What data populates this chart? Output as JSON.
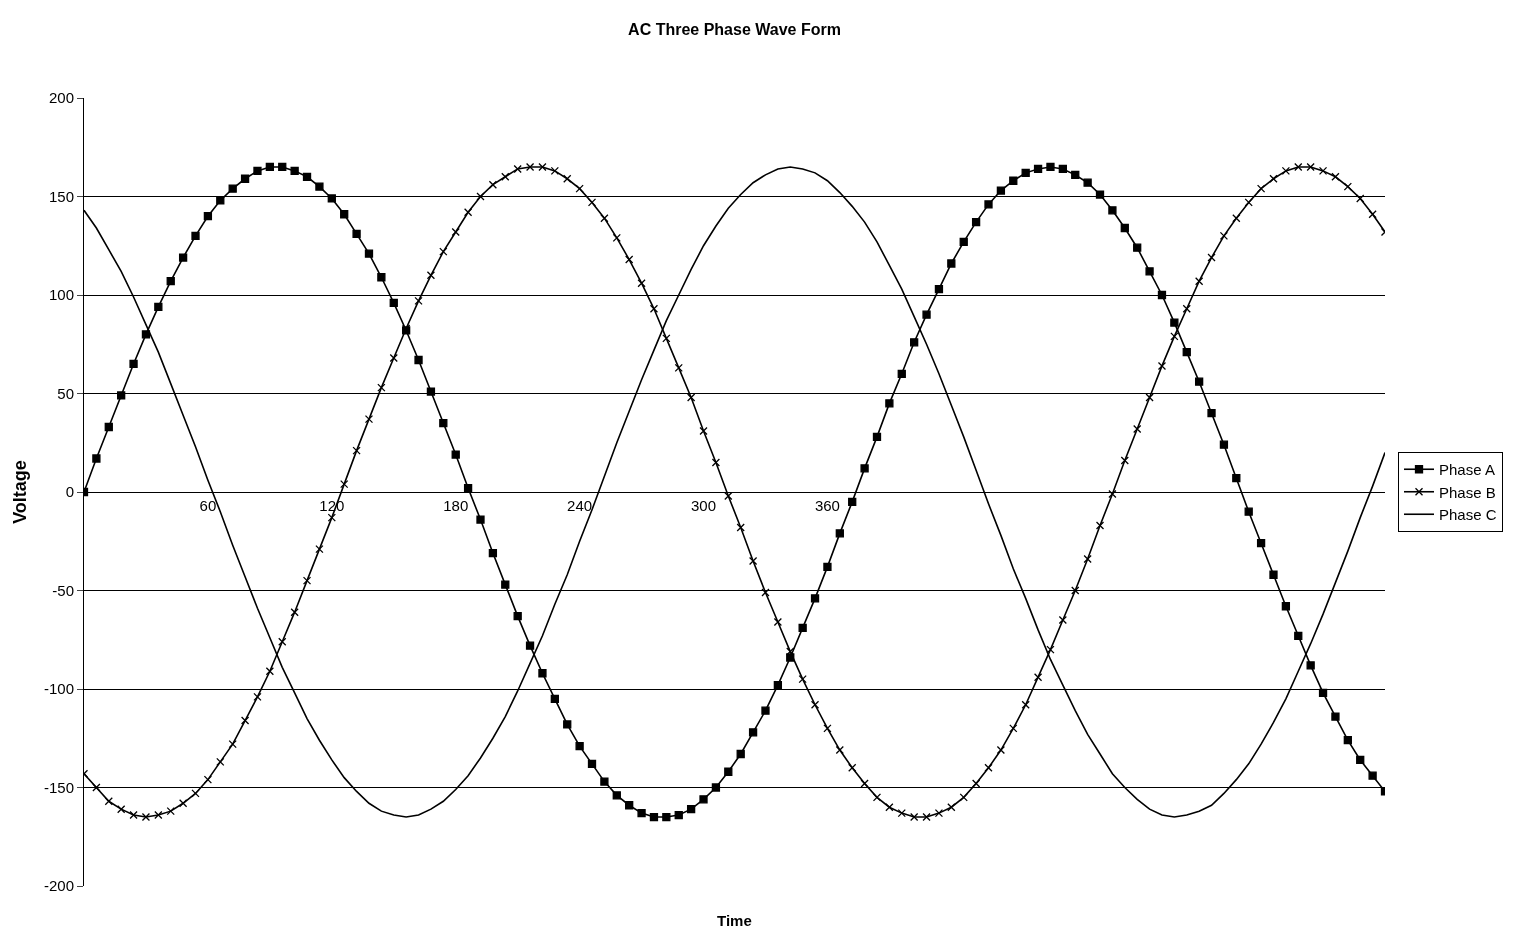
{
  "chart_data": {
    "type": "line",
    "title": "AC Three Phase Wave Form",
    "xlabel": "Time",
    "ylabel": "Voltage",
    "x": [
      0,
      6,
      12,
      18,
      24,
      30,
      36,
      42,
      48,
      54,
      60,
      66,
      72,
      78,
      84,
      90,
      96,
      102,
      108,
      114,
      120,
      126,
      132,
      138,
      144,
      150,
      156,
      162,
      168,
      174,
      180,
      186,
      192,
      198,
      204,
      210,
      216,
      222,
      228,
      234,
      240,
      246,
      252,
      258,
      264,
      270,
      276,
      282,
      288,
      294,
      300,
      306,
      312,
      318,
      324,
      330,
      336,
      342,
      348,
      354,
      360,
      366,
      372,
      378,
      384,
      390,
      396,
      402,
      408,
      414,
      420,
      426,
      432,
      438,
      444,
      450,
      456,
      462,
      468,
      474,
      480,
      486,
      492,
      498,
      504,
      510,
      516,
      522,
      528,
      534,
      540,
      546,
      552,
      558,
      564,
      570,
      576,
      582,
      588,
      594,
      600,
      606,
      612,
      618,
      624,
      630
    ],
    "series": [
      {
        "name": "Phase A",
        "color": "#000000",
        "marker": "square",
        "values": [
          0,
          17,
          33,
          49,
          65,
          80,
          94,
          107,
          119,
          130,
          140,
          148,
          154,
          159,
          163,
          165,
          165,
          163,
          160,
          155,
          149,
          141,
          131,
          121,
          109,
          96,
          82,
          67,
          51,
          35,
          19,
          2,
          -14,
          -31,
          -47,
          -63,
          -78,
          -92,
          -105,
          -118,
          -129,
          -138,
          -147,
          -154,
          -159,
          -163,
          -165,
          -165,
          -164,
          -161,
          -156,
          -150,
          -142,
          -133,
          -122,
          -111,
          -98,
          -84,
          -69,
          -54,
          -38,
          -21,
          -5,
          12,
          28,
          45,
          60,
          76,
          90,
          103,
          116,
          127,
          137,
          146,
          153,
          158,
          162,
          164,
          165,
          164,
          161,
          157,
          151,
          143,
          134,
          124,
          112,
          100,
          86,
          71,
          56,
          40,
          24,
          7,
          -10,
          -26,
          -42,
          -58,
          -73,
          -88,
          -102,
          -114,
          -126,
          -136,
          -144,
          -152
        ]
      },
      {
        "name": "Phase B",
        "color": "#000000",
        "marker": "cross",
        "values": [
          -143,
          -150,
          -157,
          -161,
          -164,
          -165,
          -164,
          -162,
          -158,
          -153,
          -146,
          -137,
          -128,
          -116,
          -104,
          -91,
          -76,
          -61,
          -45,
          -29,
          -13,
          4,
          21,
          37,
          53,
          68,
          83,
          97,
          110,
          122,
          132,
          142,
          150,
          156,
          160,
          164,
          165,
          165,
          163,
          159,
          154,
          147,
          139,
          129,
          118,
          106,
          93,
          78,
          63,
          48,
          31,
          15,
          -2,
          -18,
          -35,
          -51,
          -66,
          -81,
          -95,
          -108,
          -120,
          -131,
          -140,
          -148,
          -155,
          -160,
          -163,
          -165,
          -165,
          -163,
          -160,
          -155,
          -148,
          -140,
          -131,
          -120,
          -108,
          -94,
          -80,
          -65,
          -50,
          -34,
          -17,
          -1,
          16,
          32,
          48,
          64,
          79,
          93,
          107,
          119,
          130,
          139,
          147,
          154,
          159,
          163,
          165,
          165,
          163,
          160,
          155,
          149,
          141,
          132
        ]
      },
      {
        "name": "Phase C",
        "color": "#000000",
        "marker": "none",
        "values": [
          143,
          134,
          123,
          112,
          99,
          85,
          71,
          55,
          39,
          23,
          6,
          -10,
          -27,
          -43,
          -59,
          -74,
          -89,
          -102,
          -115,
          -126,
          -136,
          -145,
          -152,
          -158,
          -162,
          -164,
          -165,
          -164,
          -161,
          -157,
          -151,
          -144,
          -135,
          -125,
          -114,
          -101,
          -87,
          -73,
          -57,
          -42,
          -25,
          -9,
          8,
          25,
          41,
          57,
          72,
          87,
          100,
          113,
          125,
          135,
          144,
          151,
          157,
          161,
          164,
          165,
          164,
          162,
          158,
          152,
          145,
          137,
          127,
          115,
          103,
          89,
          75,
          60,
          44,
          28,
          11,
          -6,
          -22,
          -39,
          -54,
          -70,
          -85,
          -98,
          -111,
          -123,
          -133,
          -143,
          -150,
          -156,
          -161,
          -164,
          -165,
          -164,
          -162,
          -159,
          -153,
          -146,
          -138,
          -128,
          -117,
          -105,
          -91,
          -77,
          -62,
          -46,
          -30,
          -13,
          3,
          20
        ]
      }
    ],
    "xlim": [
      0,
      630
    ],
    "xticks": [
      60,
      120,
      180,
      240,
      300,
      360
    ],
    "ylim": [
      -200,
      200
    ],
    "yticks": [
      -200,
      -150,
      -100,
      -50,
      0,
      50,
      100,
      150,
      200
    ],
    "grid": "y",
    "legend": "right"
  }
}
